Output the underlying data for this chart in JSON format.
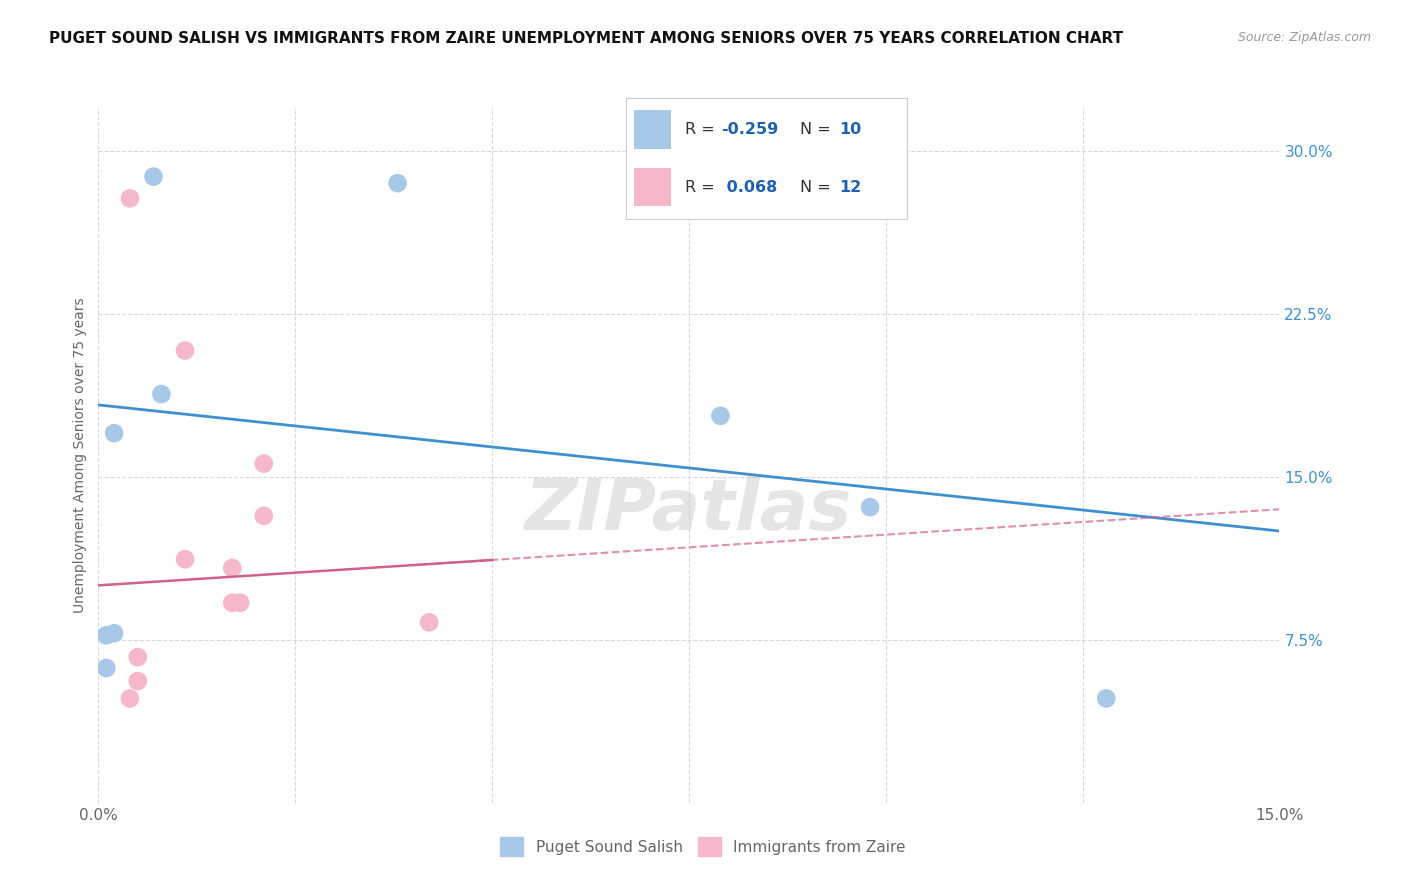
{
  "title": "PUGET SOUND SALISH VS IMMIGRANTS FROM ZAIRE UNEMPLOYMENT AMONG SENIORS OVER 75 YEARS CORRELATION CHART",
  "source": "Source: ZipAtlas.com",
  "ylabel": "Unemployment Among Seniors over 75 years",
  "xlim": [
    0.0,
    0.15
  ],
  "ylim": [
    0.0,
    0.32
  ],
  "x_ticks": [
    0.0,
    0.025,
    0.05,
    0.075,
    0.1,
    0.125,
    0.15
  ],
  "y_ticks_right": [
    0.075,
    0.15,
    0.225,
    0.3
  ],
  "y_tick_labels_right": [
    "7.5%",
    "15.0%",
    "22.5%",
    "30.0%"
  ],
  "background_color": "#ffffff",
  "grid_color": "#d8d8d8",
  "watermark": "ZIPatlas",
  "blue_scatter_x": [
    0.007,
    0.008,
    0.038,
    0.001,
    0.001,
    0.002,
    0.002,
    0.079,
    0.098,
    0.128
  ],
  "blue_scatter_y": [
    0.288,
    0.188,
    0.285,
    0.077,
    0.062,
    0.078,
    0.17,
    0.178,
    0.136,
    0.048
  ],
  "pink_scatter_x": [
    0.004,
    0.011,
    0.011,
    0.017,
    0.017,
    0.018,
    0.021,
    0.021,
    0.042,
    0.005,
    0.005,
    0.004
  ],
  "pink_scatter_y": [
    0.278,
    0.208,
    0.112,
    0.108,
    0.092,
    0.092,
    0.132,
    0.156,
    0.083,
    0.067,
    0.056,
    0.048
  ],
  "blue_line_x": [
    0.0,
    0.15
  ],
  "blue_line_y": [
    0.183,
    0.125
  ],
  "pink_line_x": [
    0.0,
    0.15
  ],
  "pink_line_y": [
    0.1,
    0.135
  ],
  "blue_color": "#a8c8e8",
  "pink_color": "#f4b8c8",
  "blue_line_color": "#4090d0",
  "pink_line_color": "#d06090",
  "scatter_size": 180,
  "R_blue": "-0.259",
  "N_blue": "10",
  "R_pink": "0.068",
  "N_pink": "12",
  "legend_label_blue": "Puget Sound Salish",
  "legend_label_pink": "Immigrants from Zaire",
  "accent_color": "#2060b0",
  "R_color": "#444444",
  "N_label_color": "#2060b0"
}
